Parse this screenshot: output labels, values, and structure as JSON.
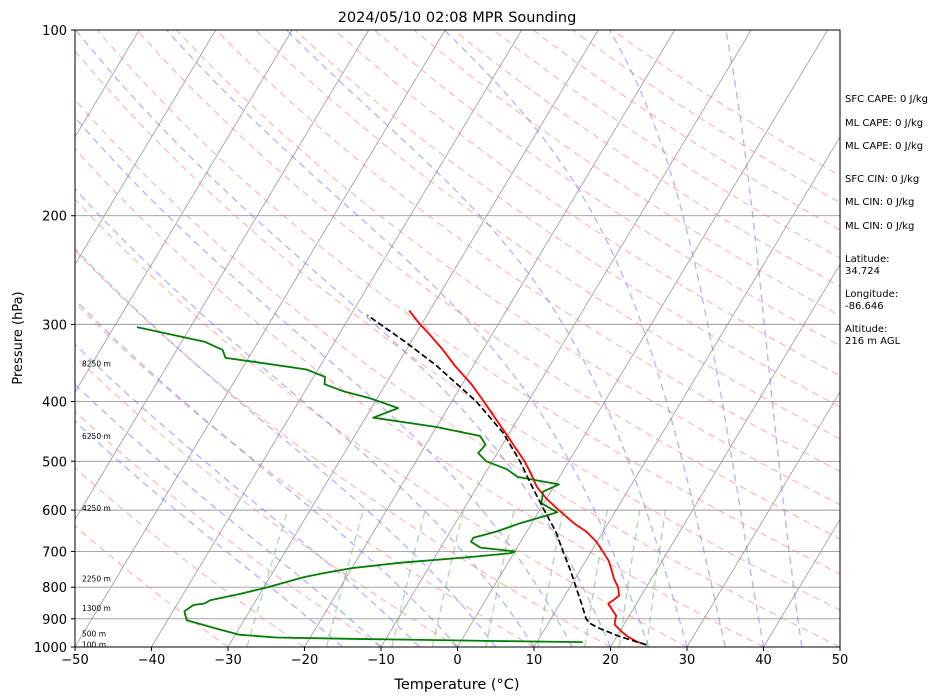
{
  "chart_data": {
    "type": "line",
    "title": "2024/05/10 02:08 MPR Sounding",
    "xlabel": "Temperature (°C)",
    "ylabel": "Pressure (hPa)",
    "xlim": [
      -50,
      50
    ],
    "ylim": [
      1000,
      100
    ],
    "y_scale": "log",
    "skew": true,
    "grid": true,
    "x_ticks": [
      -50,
      -40,
      -30,
      -20,
      -10,
      0,
      10,
      20,
      30,
      40,
      50
    ],
    "y_ticks": [
      1000,
      900,
      800,
      700,
      600,
      500,
      400,
      300,
      200,
      100
    ],
    "height_labels": [
      {
        "p": 347,
        "text": "8250 m"
      },
      {
        "p": 455,
        "text": "6250 m"
      },
      {
        "p": 595,
        "text": "4250 m"
      },
      {
        "p": 775,
        "text": "2250 m"
      },
      {
        "p": 865,
        "text": "1300 m"
      },
      {
        "p": 950,
        "text": "500 m"
      },
      {
        "p": 990,
        "text": "100 m"
      }
    ],
    "series": [
      {
        "role": "temperature",
        "color": "#ff0000",
        "points": [
          [
            992,
            24.5
          ],
          [
            980,
            23.0
          ],
          [
            960,
            21.3
          ],
          [
            940,
            20.0
          ],
          [
            920,
            18.8
          ],
          [
            905,
            18.5
          ],
          [
            890,
            18.3
          ],
          [
            870,
            17.3
          ],
          [
            855,
            16.5
          ],
          [
            850,
            16.3
          ],
          [
            840,
            16.7
          ],
          [
            825,
            17.1
          ],
          [
            800,
            16.3
          ],
          [
            775,
            15.1
          ],
          [
            750,
            14.1
          ],
          [
            725,
            13.0
          ],
          [
            700,
            11.5
          ],
          [
            675,
            9.9
          ],
          [
            650,
            7.8
          ],
          [
            630,
            5.5
          ],
          [
            600,
            2.5
          ],
          [
            575,
            0.0
          ],
          [
            550,
            -2.2
          ],
          [
            525,
            -3.9
          ],
          [
            500,
            -5.8
          ],
          [
            475,
            -8.1
          ],
          [
            450,
            -10.5
          ],
          [
            425,
            -13.1
          ],
          [
            400,
            -15.8
          ],
          [
            375,
            -18.8
          ],
          [
            350,
            -22.4
          ],
          [
            330,
            -25.2
          ],
          [
            310,
            -28.4
          ],
          [
            300,
            -30.2
          ],
          [
            285,
            -32.7
          ]
        ]
      },
      {
        "role": "dewpoint",
        "color": "#008000",
        "points": [
          [
            982,
            16.0
          ],
          [
            978,
            4.5
          ],
          [
            970,
            -14.8
          ],
          [
            965,
            -24.5
          ],
          [
            955,
            -29.5
          ],
          [
            930,
            -33.5
          ],
          [
            905,
            -37.5
          ],
          [
            875,
            -38.5
          ],
          [
            855,
            -37.8
          ],
          [
            850,
            -36.5
          ],
          [
            840,
            -36.0
          ],
          [
            820,
            -32.5
          ],
          [
            800,
            -29.5
          ],
          [
            785,
            -27.5
          ],
          [
            770,
            -25.5
          ],
          [
            760,
            -23.5
          ],
          [
            745,
            -20.0
          ],
          [
            730,
            -14.0
          ],
          [
            715,
            -5.5
          ],
          [
            705,
            -0.5
          ],
          [
            700,
            0.0
          ],
          [
            690,
            -4.8
          ],
          [
            675,
            -6.5
          ],
          [
            665,
            -6.5
          ],
          [
            650,
            -4.0
          ],
          [
            630,
            -1.5
          ],
          [
            605,
            2.5
          ],
          [
            585,
            -0.3
          ],
          [
            560,
            -1.0
          ],
          [
            545,
            0.5
          ],
          [
            530,
            -5.5
          ],
          [
            515,
            -7.5
          ],
          [
            500,
            -10.8
          ],
          [
            485,
            -12.5
          ],
          [
            470,
            -12.2
          ],
          [
            455,
            -13.6
          ],
          [
            440,
            -20.0
          ],
          [
            425,
            -29.0
          ],
          [
            410,
            -26.5
          ],
          [
            395,
            -31.0
          ],
          [
            385,
            -35.0
          ],
          [
            375,
            -38.0
          ],
          [
            365,
            -38.5
          ],
          [
            355,
            -41.5
          ],
          [
            345,
            -49.0
          ],
          [
            340,
            -53.0
          ],
          [
            330,
            -54.0
          ],
          [
            320,
            -57.0
          ],
          [
            303,
            -67.0
          ]
        ]
      },
      {
        "role": "parcel",
        "color": "#000000",
        "dashed": true,
        "points": [
          [
            992,
            24.5
          ],
          [
            960,
            20.2
          ],
          [
            930,
            16.8
          ],
          [
            915,
            15.4
          ],
          [
            900,
            14.6
          ],
          [
            850,
            12.8
          ],
          [
            800,
            10.8
          ],
          [
            750,
            8.7
          ],
          [
            700,
            6.3
          ],
          [
            650,
            3.8
          ],
          [
            600,
            0.6
          ],
          [
            550,
            -2.8
          ],
          [
            500,
            -6.4
          ],
          [
            450,
            -10.8
          ],
          [
            400,
            -16.8
          ],
          [
            350,
            -24.8
          ],
          [
            320,
            -30.8
          ],
          [
            290,
            -37.8
          ]
        ]
      }
    ]
  },
  "side_panel": [
    "SFC CAPE: 0 J/kg",
    "ML CAPE: 0 J/kg",
    "ML CAPE: 0 J/kg",
    "SFC CIN: 0 J/kg",
    "ML CIN: 0 J/kg",
    "ML CIN: 0 J/kg",
    "Latitude:",
    "34.724",
    "Longitude:",
    "-86.646",
    "Altitude:",
    "216 m AGL"
  ],
  "colors": {
    "isotherm": "#9a9a9a",
    "dry_adiabat": "#ff8080",
    "moist_adiabat": "#7070ff",
    "mixing_ratio": "#50b050",
    "isobar": "#999999"
  }
}
